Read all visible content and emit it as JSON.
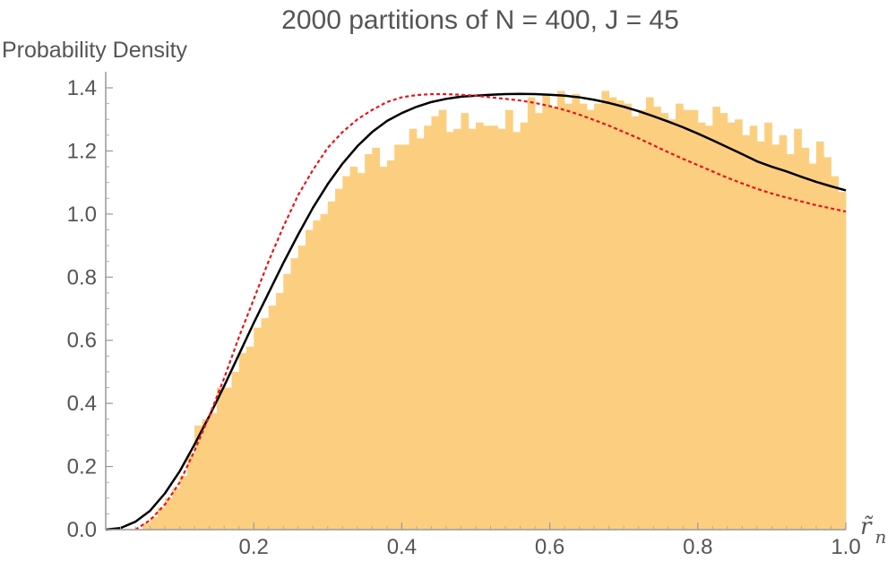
{
  "chart_data": {
    "type": "bar",
    "title": "2000 partitions of N = 400, J = 45",
    "ylabel": "Probability Density",
    "xlabel_base": "r̃",
    "xlabel_sub": "n",
    "xlim": [
      0.0,
      1.0
    ],
    "ylim": [
      0.0,
      1.45
    ],
    "x_ticks": [
      0.2,
      0.4,
      0.6,
      0.8,
      1.0
    ],
    "x_tick_labels": [
      "0.2",
      "0.4",
      "0.6",
      "0.8",
      "1.0"
    ],
    "y_ticks": [
      0.0,
      0.2,
      0.4,
      0.6,
      0.8,
      1.0,
      1.2,
      1.4
    ],
    "y_tick_labels": [
      "0.0",
      "0.2",
      "0.4",
      "0.6",
      "0.8",
      "1.0",
      "1.2",
      "1.4"
    ],
    "grid": false,
    "histogram": {
      "name": "histogram",
      "color": "#fccf80",
      "bin_width": 0.01,
      "bin_starts": [
        0.0,
        0.01,
        0.02,
        0.03,
        0.04,
        0.05,
        0.06,
        0.07,
        0.08,
        0.09,
        0.1,
        0.11,
        0.12,
        0.13,
        0.14,
        0.15,
        0.16,
        0.17,
        0.18,
        0.19,
        0.2,
        0.21,
        0.22,
        0.23,
        0.24,
        0.25,
        0.26,
        0.27,
        0.28,
        0.29,
        0.3,
        0.31,
        0.32,
        0.33,
        0.34,
        0.35,
        0.36,
        0.37,
        0.38,
        0.39,
        0.4,
        0.41,
        0.42,
        0.43,
        0.44,
        0.45,
        0.46,
        0.47,
        0.48,
        0.49,
        0.5,
        0.51,
        0.52,
        0.53,
        0.54,
        0.55,
        0.56,
        0.57,
        0.58,
        0.59,
        0.6,
        0.61,
        0.62,
        0.63,
        0.64,
        0.65,
        0.66,
        0.67,
        0.68,
        0.69,
        0.7,
        0.71,
        0.72,
        0.73,
        0.74,
        0.75,
        0.76,
        0.77,
        0.78,
        0.79,
        0.8,
        0.81,
        0.82,
        0.83,
        0.84,
        0.85,
        0.86,
        0.87,
        0.88,
        0.89,
        0.9,
        0.91,
        0.92,
        0.93,
        0.94,
        0.95,
        0.96,
        0.97,
        0.98,
        0.99
      ],
      "values": [
        0.0,
        0.0,
        0.0,
        0.0,
        0.0,
        0.02,
        0.04,
        0.07,
        0.1,
        0.13,
        0.17,
        0.24,
        0.33,
        0.35,
        0.37,
        0.45,
        0.45,
        0.5,
        0.56,
        0.58,
        0.64,
        0.67,
        0.71,
        0.75,
        0.81,
        0.86,
        0.9,
        0.95,
        0.98,
        1.0,
        1.04,
        1.08,
        1.12,
        1.15,
        1.13,
        1.19,
        1.21,
        1.15,
        1.17,
        1.22,
        1.22,
        1.27,
        1.24,
        1.28,
        1.31,
        1.33,
        1.26,
        1.27,
        1.32,
        1.27,
        1.29,
        1.28,
        1.28,
        1.27,
        1.33,
        1.26,
        1.29,
        1.37,
        1.32,
        1.38,
        1.34,
        1.39,
        1.35,
        1.38,
        1.35,
        1.33,
        1.35,
        1.39,
        1.37,
        1.36,
        1.35,
        1.31,
        1.33,
        1.37,
        1.34,
        1.32,
        1.3,
        1.35,
        1.33,
        1.33,
        1.29,
        1.28,
        1.34,
        1.32,
        1.29,
        1.3,
        1.25,
        1.28,
        1.23,
        1.29,
        1.22,
        1.25,
        1.19,
        1.27,
        1.21,
        1.16,
        1.23,
        1.18,
        1.12,
        1.07
      ]
    },
    "series": [
      {
        "color": "#000000",
        "style": "solid",
        "x": [
          0.0,
          0.02,
          0.04,
          0.06,
          0.08,
          0.1,
          0.12,
          0.14,
          0.16,
          0.18,
          0.2,
          0.22,
          0.24,
          0.26,
          0.28,
          0.3,
          0.32,
          0.34,
          0.36,
          0.38,
          0.4,
          0.42,
          0.44,
          0.46,
          0.48,
          0.5,
          0.52,
          0.54,
          0.56,
          0.58,
          0.6,
          0.62,
          0.64,
          0.66,
          0.68,
          0.7,
          0.72,
          0.74,
          0.76,
          0.78,
          0.8,
          0.82,
          0.84,
          0.86,
          0.88,
          0.9,
          0.92,
          0.94,
          0.96,
          0.98,
          1.0
        ],
        "y": [
          0.0,
          0.005,
          0.025,
          0.06,
          0.115,
          0.185,
          0.27,
          0.36,
          0.455,
          0.555,
          0.655,
          0.75,
          0.845,
          0.935,
          1.02,
          1.095,
          1.16,
          1.215,
          1.26,
          1.295,
          1.32,
          1.34,
          1.355,
          1.365,
          1.372,
          1.375,
          1.378,
          1.38,
          1.381,
          1.38,
          1.378,
          1.375,
          1.37,
          1.362,
          1.352,
          1.34,
          1.326,
          1.31,
          1.293,
          1.275,
          1.255,
          1.234,
          1.212,
          1.19,
          1.167,
          1.15,
          1.135,
          1.118,
          1.102,
          1.088,
          1.075
        ]
      },
      {
        "color": "#e8141b",
        "style": "dotted",
        "x": [
          0.04,
          0.06,
          0.08,
          0.1,
          0.12,
          0.14,
          0.16,
          0.18,
          0.2,
          0.22,
          0.24,
          0.26,
          0.28,
          0.3,
          0.32,
          0.34,
          0.36,
          0.38,
          0.4,
          0.42,
          0.44,
          0.46,
          0.48,
          0.5,
          0.52,
          0.54,
          0.56,
          0.58,
          0.6,
          0.62,
          0.64,
          0.66,
          0.68,
          0.7,
          0.72,
          0.74,
          0.76,
          0.78,
          0.8,
          0.82,
          0.84,
          0.86,
          0.88,
          0.9,
          0.92,
          0.94,
          0.96,
          0.98,
          1.0
        ],
        "y": [
          0.0,
          0.03,
          0.08,
          0.15,
          0.25,
          0.36,
          0.48,
          0.61,
          0.73,
          0.85,
          0.96,
          1.06,
          1.14,
          1.21,
          1.26,
          1.3,
          1.33,
          1.355,
          1.37,
          1.377,
          1.38,
          1.38,
          1.378,
          1.375,
          1.37,
          1.365,
          1.36,
          1.352,
          1.342,
          1.33,
          1.315,
          1.298,
          1.28,
          1.26,
          1.24,
          1.218,
          1.196,
          1.175,
          1.155,
          1.135,
          1.115,
          1.097,
          1.08,
          1.065,
          1.052,
          1.04,
          1.028,
          1.018,
          1.008
        ]
      }
    ]
  }
}
